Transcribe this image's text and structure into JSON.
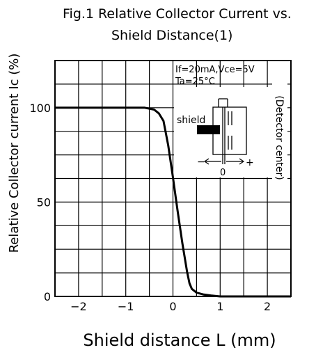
{
  "chart_data": {
    "type": "line",
    "title_line1": "Fig.1  Relative  Collector  Current  vs.",
    "title_line2": "Shield  Distance(1)",
    "xlabel": "Shield  distance  L  (mm)",
    "ylabel": "Relative  Collector  current  Ic  (%)",
    "xlim": [
      -2.5,
      2.5
    ],
    "ylim": [
      0,
      125
    ],
    "x_ticks": [
      -2,
      -1,
      0,
      1,
      2
    ],
    "x_tick_labels": [
      "−2",
      "−1",
      "0",
      "1",
      "2"
    ],
    "y_ticks": [
      0,
      50,
      100
    ],
    "y_tick_labels": [
      "0",
      "50",
      "100"
    ],
    "grid": true,
    "series": [
      {
        "x": [
          -2.5,
          -1.0,
          -0.6,
          -0.4,
          -0.3,
          -0.2,
          -0.1,
          0.0,
          0.1,
          0.2,
          0.3,
          0.35,
          0.4,
          0.5,
          0.65,
          0.8,
          1.0,
          1.5,
          2.0,
          2.5
        ],
        "y": [
          100,
          100,
          100,
          99,
          97,
          93,
          80,
          63,
          45,
          28,
          13,
          7,
          4,
          2,
          1,
          0.5,
          0,
          0,
          0,
          0
        ]
      }
    ],
    "annotations": {
      "conditions_line1": "If=20mA,Vce=5V",
      "conditions_line2": "Ta=25°C",
      "detector_note": "(Detector  center)",
      "inset_shield": "shield",
      "inset_minus": "−",
      "inset_zero": "0",
      "inset_plus": "+"
    }
  }
}
